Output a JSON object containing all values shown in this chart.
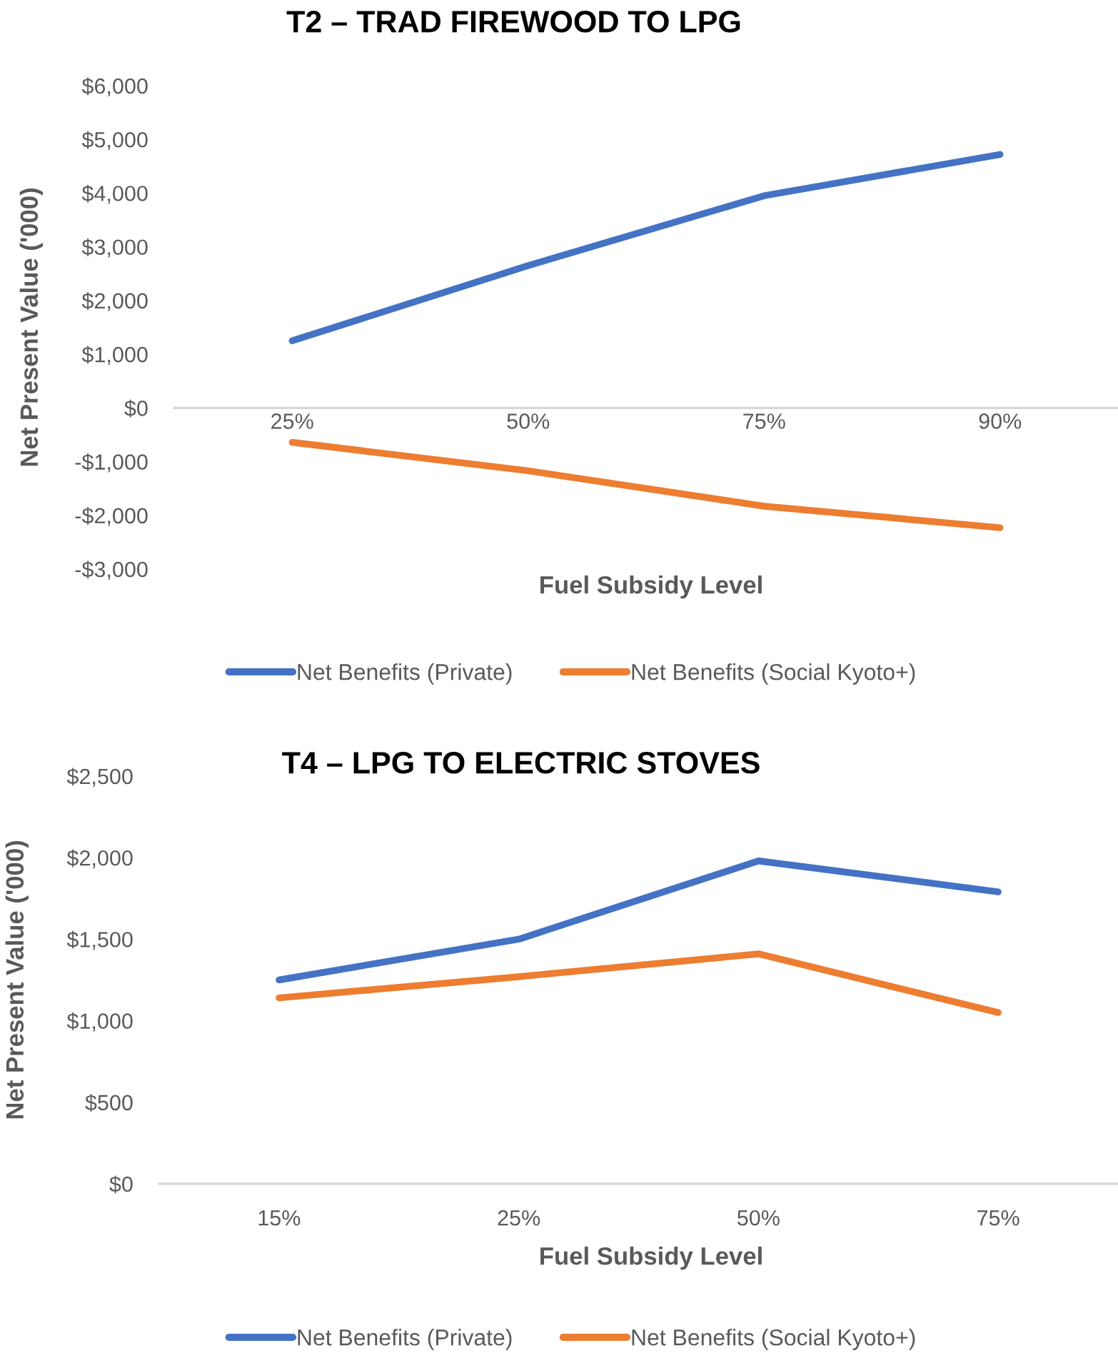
{
  "chart_data": [
    {
      "type": "line",
      "title": "T2 – TRAD FIREWOOD TO LPG",
      "xlabel": "Fuel Subsidy Level",
      "ylabel": "Net Present Value ('000)",
      "categories": [
        "25%",
        "50%",
        "75%",
        "90%"
      ],
      "series": [
        {
          "name": "Net Benefits (Private)",
          "color": "#4472c4",
          "values": [
            1250,
            2650,
            3950,
            4720
          ]
        },
        {
          "name": "Net Benefits (Social Kyoto+)",
          "color": "#ed7d31",
          "values": [
            -640,
            -1170,
            -1830,
            -2230
          ]
        }
      ],
      "ylim": [
        -3000,
        6000
      ],
      "yticks": [
        {
          "value": -3000,
          "label": "-$3,000"
        },
        {
          "value": -2000,
          "label": "-$2,000"
        },
        {
          "value": -1000,
          "label": "-$1,000"
        },
        {
          "value": 0,
          "label": "$0"
        },
        {
          "value": 1000,
          "label": "$1,000"
        },
        {
          "value": 2000,
          "label": "$2,000"
        },
        {
          "value": 3000,
          "label": "$3,000"
        },
        {
          "value": 4000,
          "label": "$4,000"
        },
        {
          "value": 5000,
          "label": "$5,000"
        },
        {
          "value": 6000,
          "label": "$6,000"
        }
      ],
      "legend": "bottom",
      "line_style": "solid"
    },
    {
      "type": "line",
      "title": "T4 – LPG TO ELECTRIC STOVES",
      "xlabel": "Fuel Subsidy Level",
      "ylabel": "Net Present Value ('000)",
      "categories": [
        "15%",
        "25%",
        "50%",
        "75%"
      ],
      "series": [
        {
          "name": "Net Benefits (Private)",
          "color": "#4472c4",
          "values": [
            1250,
            1500,
            1980,
            1790
          ]
        },
        {
          "name": "Net Benefits (Social Kyoto+)",
          "color": "#ed7d31",
          "values": [
            1140,
            1270,
            1410,
            1050
          ]
        }
      ],
      "ylim": [
        0,
        2500
      ],
      "yticks": [
        {
          "value": 0,
          "label": "$0"
        },
        {
          "value": 500,
          "label": "$500"
        },
        {
          "value": 1000,
          "label": "$1,000"
        },
        {
          "value": 1500,
          "label": "$1,500"
        },
        {
          "value": 2000,
          "label": "$2,000"
        },
        {
          "value": 2500,
          "label": "$2,500"
        }
      ],
      "legend": "bottom",
      "line_style": "solid"
    }
  ]
}
